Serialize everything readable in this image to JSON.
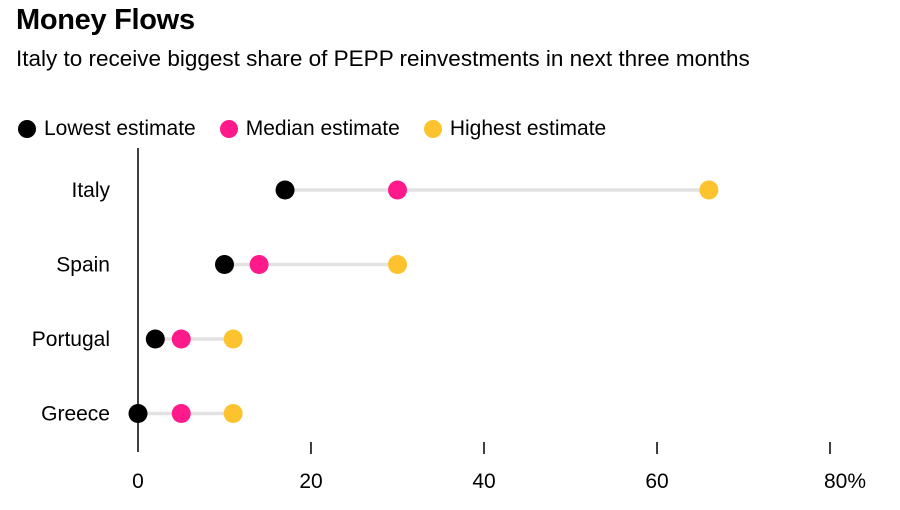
{
  "title": "Money Flows",
  "subtitle": "Italy to receive biggest share of PEPP reinvestments in next three months",
  "colors": {
    "lowest": "#000000",
    "median": "#ff1a8c",
    "highest": "#fdc32f",
    "connector": "#e2e2e2",
    "axis": "#000000"
  },
  "legend": [
    {
      "label": "Lowest estimate",
      "color": "#000000"
    },
    {
      "label": "Median estimate",
      "color": "#ff1a8c"
    },
    {
      "label": "Highest estimate",
      "color": "#fdc32f"
    }
  ],
  "chart_data": {
    "type": "dumbbell",
    "categories": [
      "Italy",
      "Spain",
      "Portugal",
      "Greece"
    ],
    "series": [
      {
        "name": "Lowest estimate",
        "values": [
          17,
          10,
          2,
          0
        ]
      },
      {
        "name": "Median estimate",
        "values": [
          30,
          14,
          5,
          5
        ]
      },
      {
        "name": "Highest estimate",
        "values": [
          66,
          30,
          11,
          11
        ]
      }
    ],
    "x_ticks": [
      0,
      20,
      40,
      60,
      80
    ],
    "x_tick_labels": [
      "0",
      "20",
      "40",
      "60",
      "80%"
    ],
    "xlim": [
      0,
      80
    ],
    "grid": false,
    "legend_position": "top-left"
  }
}
